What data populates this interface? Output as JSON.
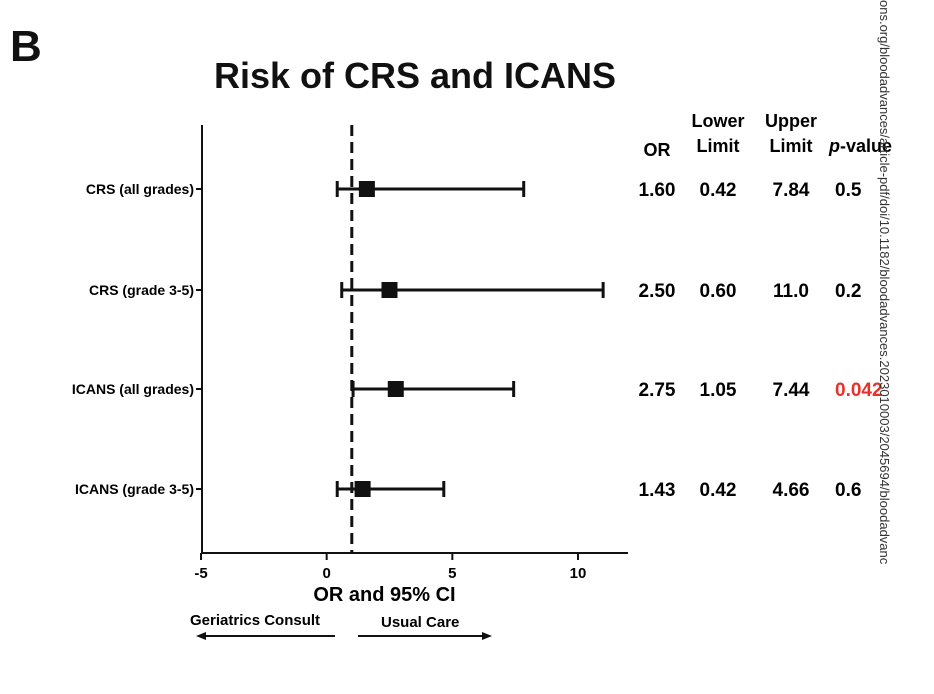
{
  "panel_label": "B",
  "watermark": "ons.org/bloodadvances/article-pdf/doi/10.1182/bloodadvances.2023010003/2045694/bloodadvanc",
  "colors": {
    "significant": "#e8312a",
    "arrow_label": "#e8312a",
    "ink": "#111111"
  },
  "columns": {
    "or": "OR",
    "lower_1": "Lower",
    "lower_2": "Limit",
    "upper_1": "Upper",
    "upper_2": "Limit",
    "p_italic": "p",
    "p_rest": "-value"
  },
  "direction": {
    "left_label": "Geriatrics Consult",
    "right_label": "Usual Care"
  },
  "chart_data": {
    "type": "forest",
    "title": "Risk of CRS and ICANS",
    "xlabel": "OR and 95% CI",
    "xlim": [
      -5,
      12
    ],
    "xticks": [
      -5,
      0,
      5,
      10
    ],
    "reference_line": 1,
    "rows": [
      {
        "label": "CRS (all grades)",
        "or": 1.6,
        "lower": 0.42,
        "upper": 7.84,
        "or_text": "1.60",
        "lower_text": "0.42",
        "upper_text": "7.84",
        "p_text": "0.5",
        "significant": false
      },
      {
        "label": "CRS (grade 3-5)",
        "or": 2.5,
        "lower": 0.6,
        "upper": 11.0,
        "or_text": "2.50",
        "lower_text": "0.60",
        "upper_text": "11.0",
        "p_text": "0.2",
        "significant": false
      },
      {
        "label": "ICANS (all grades)",
        "or": 2.75,
        "lower": 1.05,
        "upper": 7.44,
        "or_text": "2.75",
        "lower_text": "1.05",
        "upper_text": "7.44",
        "p_text": "0.042",
        "significant": true
      },
      {
        "label": "ICANS (grade 3-5)",
        "or": 1.43,
        "lower": 0.42,
        "upper": 4.66,
        "or_text": "1.43",
        "lower_text": "0.42",
        "upper_text": "4.66",
        "p_text": "0.6",
        "significant": false
      }
    ]
  }
}
